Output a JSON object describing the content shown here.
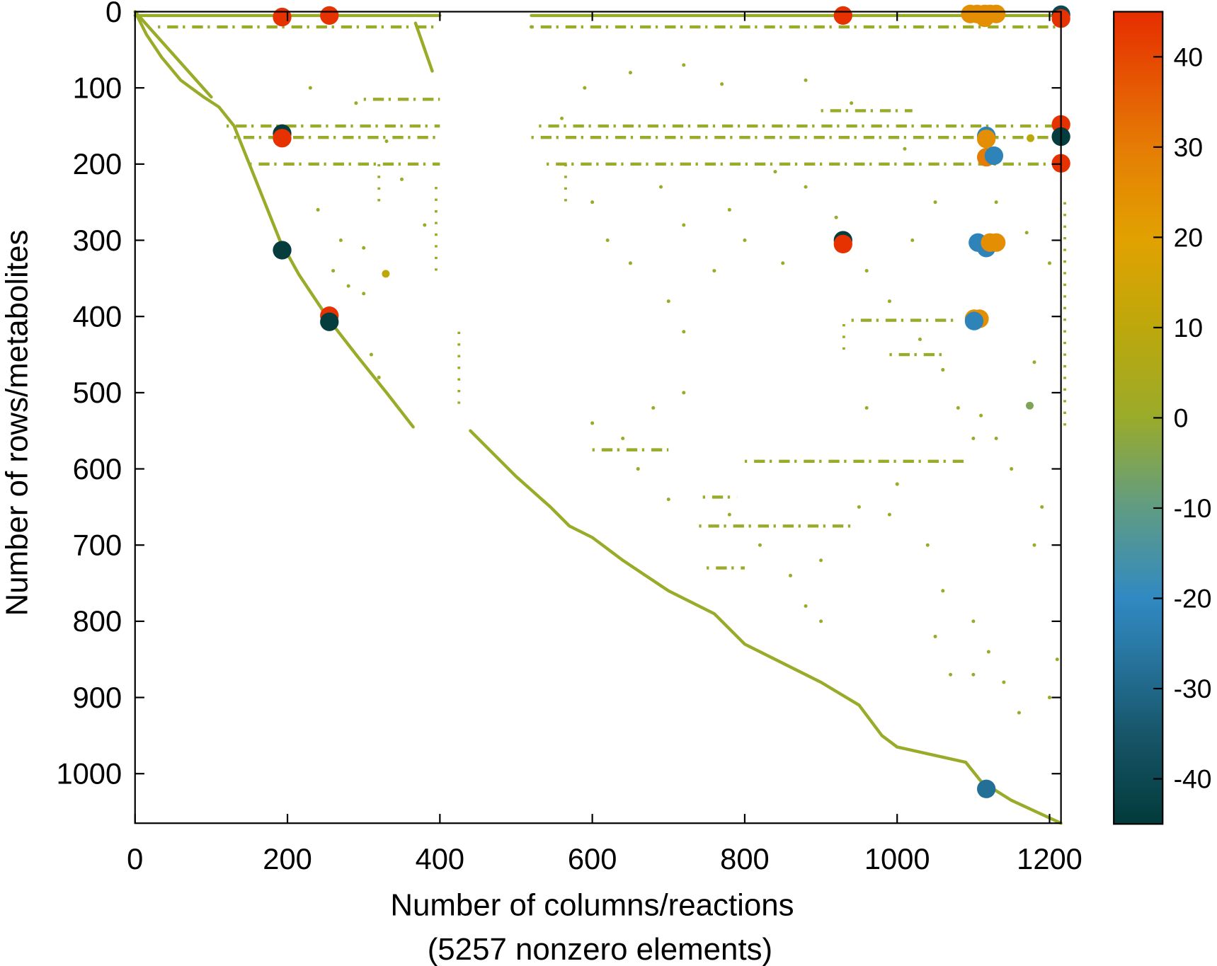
{
  "chart_data": {
    "type": "scatter",
    "title": "",
    "xlabel": "Number of columns/reactions",
    "xlabel_line2": "(5257 nonzero elements)",
    "ylabel": "Number of rows/metabolites",
    "xlim": [
      0,
      1215
    ],
    "ylim": [
      1065,
      0
    ],
    "xticks": [
      0,
      200,
      400,
      600,
      800,
      1000,
      1200
    ],
    "yticks": [
      0,
      100,
      200,
      300,
      400,
      500,
      600,
      700,
      800,
      900,
      1000
    ],
    "grid": false,
    "colorbar": {
      "range": [
        -45,
        45
      ],
      "ticks": [
        40,
        30,
        20,
        10,
        0,
        -10,
        -20,
        -30,
        -40
      ],
      "stops": [
        [
          -45,
          "#033a3a"
        ],
        [
          -35,
          "#17566a"
        ],
        [
          -25,
          "#2a7aa8"
        ],
        [
          -20,
          "#3089c2"
        ],
        [
          -10,
          "#609c84"
        ],
        [
          0,
          "#9aab2a"
        ],
        [
          10,
          "#bda80c"
        ],
        [
          20,
          "#e2a100"
        ],
        [
          30,
          "#e57c05"
        ],
        [
          45,
          "#e62d00"
        ]
      ]
    },
    "default_value": 0,
    "large_points": [
      {
        "x": 193,
        "y": 7,
        "v": 44
      },
      {
        "x": 255,
        "y": 5,
        "v": 44
      },
      {
        "x": 929,
        "y": 5,
        "v": 44
      },
      {
        "x": 1096,
        "y": 3,
        "v": 25
      },
      {
        "x": 1105,
        "y": 3,
        "v": 25
      },
      {
        "x": 1115,
        "y": 3,
        "v": 25
      },
      {
        "x": 1122,
        "y": 3,
        "v": 25
      },
      {
        "x": 1130,
        "y": 3,
        "v": 25
      },
      {
        "x": 1115,
        "y": 8,
        "v": 25
      },
      {
        "x": 1215,
        "y": 4,
        "v": -40
      },
      {
        "x": 1215,
        "y": 9,
        "v": 44
      },
      {
        "x": 193,
        "y": 160,
        "v": -44
      },
      {
        "x": 193,
        "y": 166,
        "v": 44
      },
      {
        "x": 193,
        "y": 313,
        "v": -44
      },
      {
        "x": 255,
        "y": 399,
        "v": 44
      },
      {
        "x": 255,
        "y": 407,
        "v": -44
      },
      {
        "x": 929,
        "y": 300,
        "v": -44
      },
      {
        "x": 929,
        "y": 305,
        "v": 44
      },
      {
        "x": 1117,
        "y": 163,
        "v": -22
      },
      {
        "x": 1117,
        "y": 167,
        "v": 25
      },
      {
        "x": 1117,
        "y": 191,
        "v": 30
      },
      {
        "x": 1127,
        "y": 189,
        "v": -22
      },
      {
        "x": 1106,
        "y": 303,
        "v": -22
      },
      {
        "x": 1117,
        "y": 310,
        "v": -22
      },
      {
        "x": 1122,
        "y": 303,
        "v": 25
      },
      {
        "x": 1130,
        "y": 303,
        "v": 25
      },
      {
        "x": 1101,
        "y": 403,
        "v": 25
      },
      {
        "x": 1108,
        "y": 403,
        "v": 25
      },
      {
        "x": 1101,
        "y": 406,
        "v": -22
      },
      {
        "x": 1117,
        "y": 1020,
        "v": -28
      },
      {
        "x": 1215,
        "y": 148,
        "v": 44
      },
      {
        "x": 1215,
        "y": 164,
        "v": -44
      },
      {
        "x": 1215,
        "y": 199,
        "v": 44
      }
    ],
    "medium_points": [
      {
        "x": 329,
        "y": 344,
        "v": 10
      },
      {
        "x": 1174,
        "y": 517,
        "v": -5
      },
      {
        "x": 1175,
        "y": 166,
        "v": 10
      }
    ],
    "structure_lines": [
      [
        [
          0,
          0
        ],
        [
          15,
          30
        ],
        [
          35,
          60
        ],
        [
          60,
          90
        ],
        [
          90,
          112
        ],
        [
          110,
          125
        ],
        [
          130,
          150
        ],
        [
          150,
          200
        ],
        [
          170,
          250
        ],
        [
          190,
          300
        ],
        [
          215,
          345
        ],
        [
          255,
          405
        ],
        [
          290,
          450
        ],
        [
          330,
          500
        ],
        [
          365,
          545
        ]
      ],
      [
        [
          0,
          0
        ],
        [
          100,
          112
        ]
      ],
      [
        [
          440,
          550
        ],
        [
          500,
          610
        ],
        [
          545,
          650
        ],
        [
          570,
          675
        ],
        [
          600,
          690
        ],
        [
          640,
          720
        ],
        [
          700,
          760
        ],
        [
          760,
          790
        ],
        [
          800,
          830
        ],
        [
          850,
          855
        ],
        [
          900,
          880
        ],
        [
          950,
          910
        ],
        [
          980,
          950
        ],
        [
          1000,
          965
        ],
        [
          1090,
          985
        ],
        [
          1110,
          1010
        ],
        [
          1150,
          1035
        ],
        [
          1215,
          1065
        ]
      ],
      [
        [
          368,
          15
        ],
        [
          390,
          78
        ]
      ],
      [
        [
          0,
          5
        ],
        [
          400,
          5
        ]
      ],
      [
        [
          520,
          5
        ],
        [
          1215,
          5
        ]
      ]
    ],
    "dotted_bands": [
      {
        "y": 20,
        "x": [
          30,
          400
        ]
      },
      {
        "y": 20,
        "x": [
          520,
          1215
        ]
      },
      {
        "y": 150,
        "x": [
          120,
          400
        ]
      },
      {
        "y": 150,
        "x": [
          530,
          1215
        ]
      },
      {
        "y": 165,
        "x": [
          130,
          400
        ]
      },
      {
        "y": 165,
        "x": [
          520,
          1215
        ]
      },
      {
        "y": 200,
        "x": [
          150,
          400
        ]
      },
      {
        "y": 200,
        "x": [
          540,
          1215
        ]
      },
      {
        "y": 115,
        "x": [
          300,
          400
        ]
      },
      {
        "y": 130,
        "x": [
          900,
          1020
        ]
      },
      {
        "y": 405,
        "x": [
          940,
          1080
        ]
      },
      {
        "y": 450,
        "x": [
          990,
          1060
        ]
      },
      {
        "y": 575,
        "x": [
          600,
          700
        ]
      },
      {
        "y": 590,
        "x": [
          800,
          1090
        ]
      },
      {
        "y": 637,
        "x": [
          745,
          790
        ]
      },
      {
        "y": 675,
        "x": [
          740,
          940
        ]
      },
      {
        "y": 730,
        "x": [
          750,
          800
        ]
      }
    ],
    "dotted_columns": [
      {
        "x": 395,
        "y": [
          230,
          350
        ]
      },
      {
        "x": 425,
        "y": [
          420,
          520
        ]
      },
      {
        "x": 320,
        "y": [
          200,
          260
        ]
      },
      {
        "x": 565,
        "y": [
          200,
          260
        ]
      },
      {
        "x": 930,
        "y": [
          410,
          450
        ]
      },
      {
        "x": 1220,
        "y": [
          250,
          550
        ]
      }
    ],
    "points": [
      [
        230,
        100
      ],
      [
        290,
        120
      ],
      [
        330,
        170
      ],
      [
        350,
        220
      ],
      [
        380,
        280
      ],
      [
        240,
        260
      ],
      [
        270,
        300
      ],
      [
        300,
        310
      ],
      [
        260,
        340
      ],
      [
        280,
        360
      ],
      [
        300,
        370
      ],
      [
        310,
        450
      ],
      [
        320,
        480
      ],
      [
        520,
        20
      ],
      [
        560,
        140
      ],
      [
        600,
        250
      ],
      [
        620,
        300
      ],
      [
        650,
        330
      ],
      [
        700,
        380
      ],
      [
        720,
        420
      ],
      [
        680,
        520
      ],
      [
        640,
        560
      ],
      [
        600,
        540
      ],
      [
        660,
        600
      ],
      [
        700,
        640
      ],
      [
        780,
        660
      ],
      [
        820,
        700
      ],
      [
        860,
        740
      ],
      [
        880,
        780
      ],
      [
        900,
        720
      ],
      [
        950,
        650
      ],
      [
        1000,
        620
      ],
      [
        1040,
        700
      ],
      [
        1060,
        760
      ],
      [
        1100,
        800
      ],
      [
        1120,
        840
      ],
      [
        1140,
        880
      ],
      [
        1160,
        920
      ],
      [
        1200,
        900
      ],
      [
        1210,
        850
      ],
      [
        1180,
        700
      ],
      [
        1190,
        650
      ],
      [
        1150,
        600
      ],
      [
        1100,
        560
      ],
      [
        1080,
        520
      ],
      [
        1060,
        470
      ],
      [
        1030,
        430
      ],
      [
        990,
        380
      ],
      [
        960,
        340
      ],
      [
        920,
        270
      ],
      [
        880,
        230
      ],
      [
        840,
        210
      ],
      [
        800,
        300
      ],
      [
        760,
        340
      ],
      [
        720,
        280
      ],
      [
        690,
        230
      ],
      [
        780,
        260
      ],
      [
        850,
        330
      ],
      [
        1020,
        300
      ],
      [
        1050,
        250
      ],
      [
        1130,
        250
      ],
      [
        1170,
        290
      ],
      [
        1200,
        330
      ],
      [
        1010,
        180
      ],
      [
        940,
        120
      ],
      [
        880,
        90
      ],
      [
        770,
        95
      ],
      [
        720,
        70
      ],
      [
        650,
        80
      ],
      [
        590,
        100
      ],
      [
        1110,
        530
      ],
      [
        1130,
        560
      ],
      [
        1180,
        460
      ],
      [
        960,
        520
      ],
      [
        720,
        500
      ],
      [
        1050,
        820
      ],
      [
        1070,
        870
      ],
      [
        1100,
        870
      ],
      [
        990,
        660
      ],
      [
        900,
        800
      ]
    ]
  }
}
